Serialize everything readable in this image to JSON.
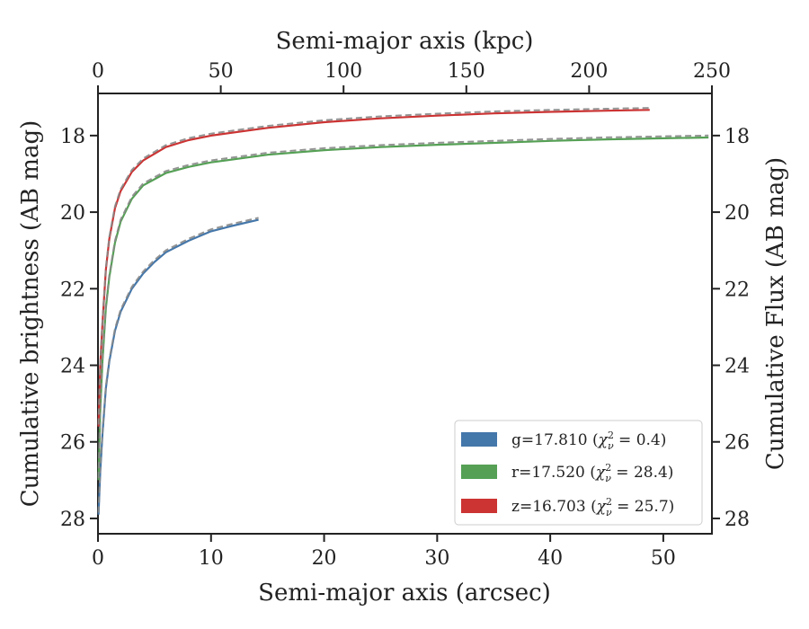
{
  "chart_data": {
    "type": "line",
    "xlabel_bottom": "Semi-major axis (arcsec)",
    "xlabel_top": "Semi-major axis (kpc)",
    "ylabel_left": "Cumulative brightness (AB mag)",
    "ylabel_right": "Cumulative Flux (AB mag)",
    "xlim": [
      0,
      54.3
    ],
    "ylim_inverted": [
      28.4,
      16.9
    ],
    "top_xlim": [
      0,
      250
    ],
    "x_ticks": [
      "0",
      "10",
      "20",
      "30",
      "40",
      "50"
    ],
    "top_x_ticks": [
      "0",
      "50",
      "100",
      "150",
      "200",
      "250"
    ],
    "y_ticks": [
      "18",
      "20",
      "22",
      "24",
      "26",
      "28"
    ],
    "grid": false,
    "legend_position": "lower-right",
    "series": [
      {
        "name": "g=17.810 (χ²ᵥ = 0.4)",
        "legend": {
          "prefix": "g=17.810 (",
          "chi": "χ",
          "sup": "2",
          "sub": "ν",
          "suffix": " = 0.4)"
        },
        "color": "#4477aa",
        "x": [
          0.05,
          0.2,
          0.4,
          0.7,
          1.0,
          1.5,
          2.0,
          3.0,
          4.0,
          5.0,
          6.0,
          8.0,
          10.0,
          12.0,
          14.2
        ],
        "y": [
          27.9,
          26.8,
          25.8,
          24.6,
          23.9,
          23.1,
          22.6,
          22.0,
          21.6,
          21.3,
          21.05,
          20.75,
          20.5,
          20.35,
          20.2
        ]
      },
      {
        "name": "r=17.520 (χ²ᵥ = 28.4)",
        "legend": {
          "prefix": "r=17.520 (",
          "chi": "χ",
          "sup": "2",
          "sub": "ν",
          "suffix": " = 28.4)"
        },
        "color": "#55a055",
        "x": [
          0.05,
          0.2,
          0.4,
          0.7,
          1.0,
          1.5,
          2.0,
          3.0,
          4.0,
          6.0,
          8.0,
          10.0,
          15.0,
          20.0,
          25.0,
          30.0,
          35.0,
          40.0,
          45.0,
          50.0,
          54.0
        ],
        "y": [
          27.0,
          25.2,
          23.9,
          22.5,
          21.7,
          20.8,
          20.25,
          19.65,
          19.3,
          18.98,
          18.82,
          18.7,
          18.5,
          18.38,
          18.3,
          18.24,
          18.19,
          18.14,
          18.1,
          18.07,
          18.05
        ]
      },
      {
        "name": "z=16.703 (χ²ᵥ = 25.7)",
        "legend": {
          "prefix": "z=16.703 (",
          "chi": "χ",
          "sup": "2",
          "sub": "ν",
          "suffix": " = 25.7)"
        },
        "color": "#cc3333",
        "x": [
          0.05,
          0.2,
          0.4,
          0.7,
          1.0,
          1.5,
          2.0,
          3.0,
          4.0,
          6.0,
          8.0,
          10.0,
          15.0,
          20.0,
          25.0,
          30.0,
          35.0,
          40.0,
          45.0,
          48.8
        ],
        "y": [
          25.6,
          24.0,
          22.9,
          21.5,
          20.7,
          19.9,
          19.45,
          18.95,
          18.65,
          18.3,
          18.12,
          18.0,
          17.8,
          17.65,
          17.55,
          17.48,
          17.42,
          17.38,
          17.35,
          17.33
        ]
      }
    ]
  }
}
